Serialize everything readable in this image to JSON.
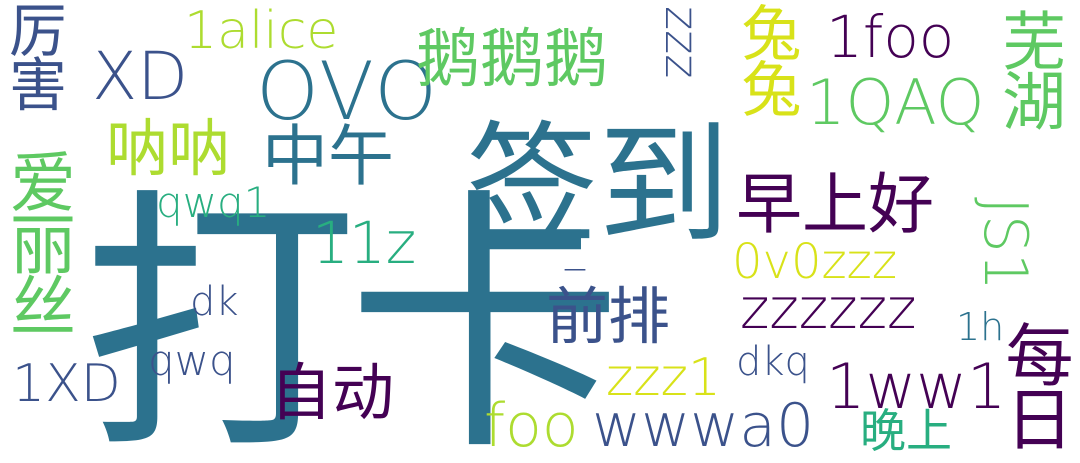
{
  "cloud": {
    "words": [
      {
        "text": "打卡",
        "color": "#2c728e"
      },
      {
        "text": "签到",
        "color": "#2c728e"
      },
      {
        "text": "OVO",
        "color": "#2c728e"
      },
      {
        "text": "鹅鹅鹅",
        "color": "#5ec962"
      },
      {
        "text": "XD",
        "color": "#3b528b"
      },
      {
        "text": "1alice",
        "color": "#addc30"
      },
      {
        "text": "厉害",
        "color": "#3b528b"
      },
      {
        "text": "爱丽丝",
        "color": "#5ec962"
      },
      {
        "text": "呐呐",
        "color": "#addc30"
      },
      {
        "text": "中午",
        "color": "#2c728e"
      },
      {
        "text": "qwq1",
        "color": "#28ae80"
      },
      {
        "text": "11z",
        "color": "#28ae80"
      },
      {
        "text": "zzz",
        "color": "#3b528b"
      },
      {
        "text": "兔兔",
        "color": "#d8e219"
      },
      {
        "text": "1foo",
        "color": "#440154"
      },
      {
        "text": "1QAQ",
        "color": "#5ec962"
      },
      {
        "text": "芜湖",
        "color": "#5ec962"
      },
      {
        "text": "早上好",
        "color": "#440154"
      },
      {
        "text": "JS1",
        "color": "#5ec962"
      },
      {
        "text": "0v0zzz",
        "color": "#d8e219"
      },
      {
        "text": "zzzzzz",
        "color": "#440154"
      },
      {
        "text": "前排",
        "color": "#3b528b"
      },
      {
        "text": "_",
        "color": "#3b528b"
      },
      {
        "text": "dk",
        "color": "#3b528b"
      },
      {
        "text": "qwq",
        "color": "#3b528b"
      },
      {
        "text": "1XD",
        "color": "#3b528b"
      },
      {
        "text": "自动",
        "color": "#440154"
      },
      {
        "text": "zzz1",
        "color": "#d8e219"
      },
      {
        "text": "dkq",
        "color": "#3b528b"
      },
      {
        "text": "1ww1",
        "color": "#440154"
      },
      {
        "text": "1h",
        "color": "#2c728e"
      },
      {
        "text": "每日",
        "color": "#440154"
      },
      {
        "text": "foo",
        "color": "#addc30"
      },
      {
        "text": "wwwa0",
        "color": "#3b528b"
      },
      {
        "text": "晚上",
        "color": "#28ae80"
      }
    ]
  }
}
